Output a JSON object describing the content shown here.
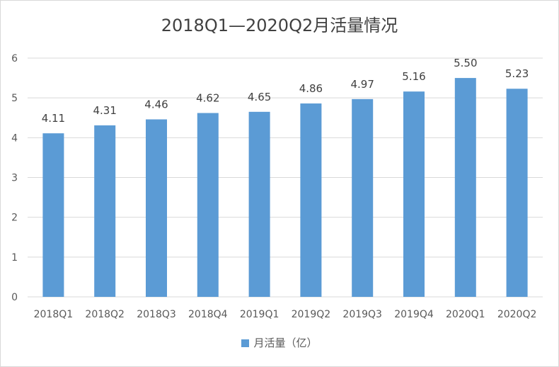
{
  "chart_data": {
    "type": "bar",
    "title": "2018Q1—2020Q2月活量情况",
    "xlabel": "",
    "ylabel": "",
    "categories": [
      "2018Q1",
      "2018Q2",
      "2018Q3",
      "2018Q4",
      "2019Q1",
      "2019Q2",
      "2019Q3",
      "2019Q4",
      "2020Q1",
      "2020Q2"
    ],
    "series": [
      {
        "name": "月活量（亿）",
        "values": [
          4.11,
          4.31,
          4.46,
          4.62,
          4.65,
          4.86,
          4.97,
          5.16,
          5.5,
          5.23
        ],
        "labels": [
          "4.11",
          "4.31",
          "4.46",
          "4.62",
          "4.65",
          "4.86",
          "4.97",
          "5.16",
          "5.50",
          "5.23"
        ]
      }
    ],
    "ylim": [
      0,
      6
    ],
    "yticks": [
      "0",
      "1",
      "2",
      "3",
      "4",
      "5",
      "6"
    ],
    "grid": true,
    "legend_position": "bottom",
    "colors": {
      "bar": "#5b9bd5",
      "grid": "#d9d9d9",
      "text": "#595959",
      "data_label": "#404040"
    }
  }
}
